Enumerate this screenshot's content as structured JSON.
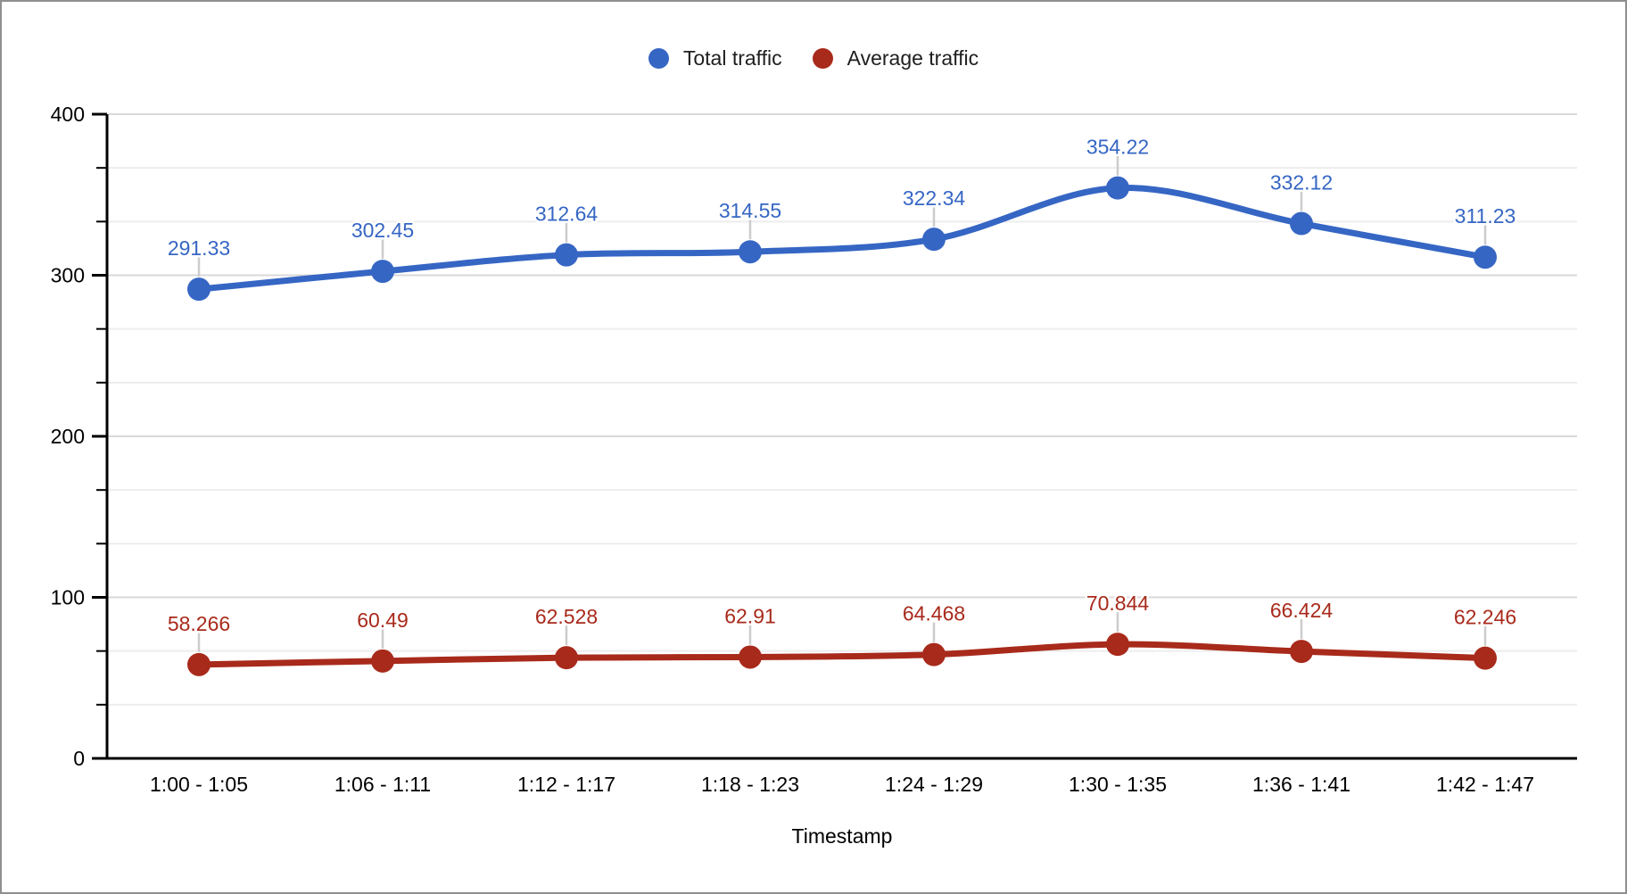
{
  "window": {
    "background": "#ffffff",
    "border_color": "#8f8f8f"
  },
  "chart_data": {
    "type": "line",
    "smooth": true,
    "title": "",
    "xlabel": "Timestamp",
    "ylabel": "",
    "ylim": [
      0,
      400
    ],
    "grid": true,
    "legend_position": "top",
    "categories": [
      "1:00 - 1:05",
      "1:06 - 1:11",
      "1:12 - 1:17",
      "1:18 - 1:23",
      "1:24 - 1:29",
      "1:30 - 1:35",
      "1:36 - 1:41",
      "1:42 - 1:47"
    ],
    "series": [
      {
        "name": "Total traffic",
        "color": "#3666C4",
        "values": [
          291.33,
          302.45,
          312.64,
          314.55,
          322.34,
          354.22,
          332.12,
          311.23
        ],
        "labels": [
          "291.33",
          "302.45",
          "312.64",
          "314.55",
          "322.34",
          "354.22",
          "332.12",
          "311.23"
        ]
      },
      {
        "name": "Average traffic",
        "color": "#A82A1B",
        "values": [
          58.266,
          60.49,
          62.528,
          62.91,
          64.468,
          70.844,
          66.424,
          62.246
        ],
        "labels": [
          "58.266",
          "60.49",
          "62.528",
          "62.91",
          "64.468",
          "70.844",
          "66.424",
          "62.246"
        ]
      }
    ],
    "y_major_ticks": [
      0,
      100,
      200,
      300,
      400
    ],
    "y_tick_labels": [
      "0",
      "100",
      "200",
      "300",
      "400"
    ],
    "y_minor_divisions_per_major": 3,
    "axis_color": "#000000",
    "gridline_color": "#d9d9d9",
    "minor_gridline_color": "#ededed",
    "callout_color": "#cccccc",
    "tick_label_color": "#000000"
  }
}
